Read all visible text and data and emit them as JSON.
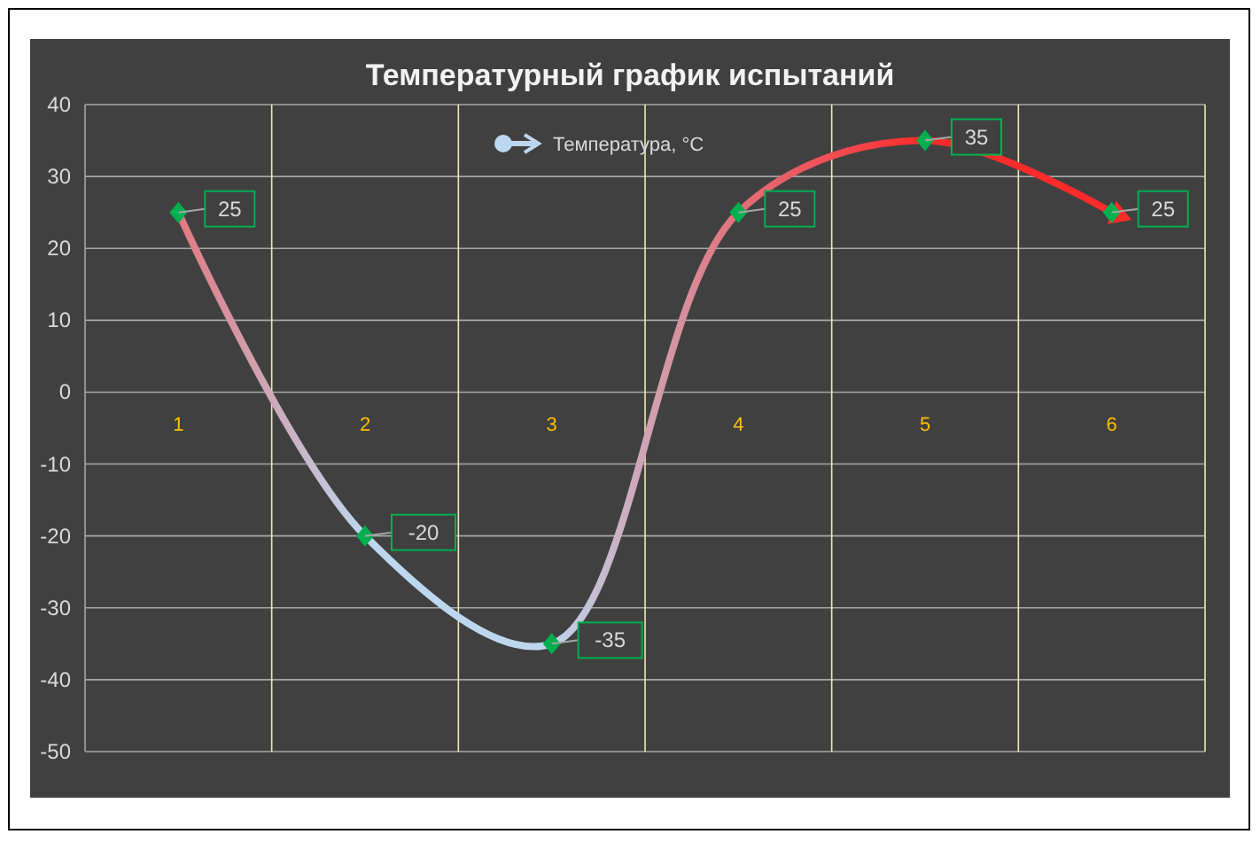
{
  "chart_data": {
    "type": "line",
    "title": "Температурный график испытаний",
    "categories": [
      "1",
      "2",
      "3",
      "4",
      "5",
      "6"
    ],
    "series": [
      {
        "name": "Температура, °C",
        "color": "#00b050",
        "colors": [
          "#e07a82",
          "#bdd7ee",
          "#bdd7ee",
          "#e2707a",
          "#ff2a2a",
          "#ff2a2a"
        ],
        "values": [
          25,
          -20,
          -35,
          25,
          35,
          25
        ]
      }
    ],
    "ylim": [
      -50,
      40
    ],
    "yticks": [
      -50,
      -40,
      -30,
      -20,
      -10,
      0,
      10,
      20,
      30,
      40
    ],
    "grid": true,
    "legend": "top",
    "marker": "diamond",
    "line_style": "solid",
    "data_labels": true
  }
}
